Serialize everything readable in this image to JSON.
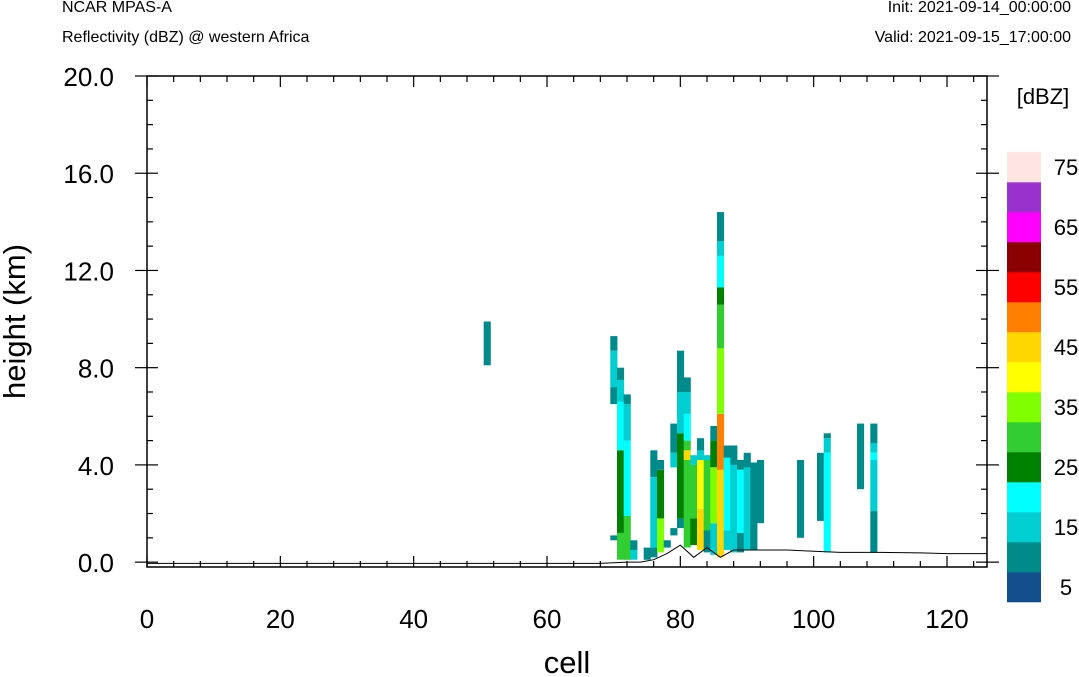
{
  "header": {
    "model": "NCAR MPAS-A",
    "subtitle": "Reflectivity (dBZ) @ western Africa",
    "init": "Init: 2021-09-14_00:00:00",
    "valid": "Valid: 2021-09-15_17:00:00"
  },
  "chart_data": {
    "type": "heatmap",
    "title": "Reflectivity (dBZ) @ western Africa",
    "xlabel": "cell",
    "ylabel": "height (km)",
    "xlim": [
      0,
      126
    ],
    "ylim": [
      -0.2,
      20
    ],
    "x_ticks": [
      "0",
      "20",
      "40",
      "60",
      "80",
      "100",
      "120"
    ],
    "y_ticks": [
      "0.0",
      "4.0",
      "8.0",
      "12.0",
      "16.0",
      "20.0"
    ],
    "colorbar": {
      "unit": "[dBZ]",
      "labels": [
        "5",
        "15",
        "25",
        "35",
        "45",
        "55",
        "65",
        "75"
      ],
      "colors": [
        "#134f8c",
        "#008b8b",
        "#00ced1",
        "#00ffff",
        "#008000",
        "#32cd32",
        "#7fff00",
        "#ffff00",
        "#ffd700",
        "#ff8000",
        "#ff0000",
        "#8b0000",
        "#ff00ff",
        "#9932cc",
        "#ffe4e1"
      ]
    },
    "columns": [
      {
        "cell": 51,
        "segments": [
          {
            "y0": 8.1,
            "y1": 9.9,
            "dbz": 5
          }
        ]
      },
      {
        "cell": 70,
        "segments": [
          {
            "y0": 0.9,
            "y1": 1.1,
            "dbz": 5
          },
          {
            "y0": 6.5,
            "y1": 7.2,
            "dbz": 5
          },
          {
            "y0": 7.2,
            "y1": 8.7,
            "dbz": 10
          },
          {
            "y0": 8.7,
            "y1": 9.3,
            "dbz": 5
          }
        ]
      },
      {
        "cell": 71,
        "segments": [
          {
            "y0": 0.1,
            "y1": 1.2,
            "dbz": 25
          },
          {
            "y0": 1.2,
            "y1": 4.6,
            "dbz": 20
          },
          {
            "y0": 4.6,
            "y1": 6.6,
            "dbz": 15
          },
          {
            "y0": 6.6,
            "y1": 7.5,
            "dbz": 10
          },
          {
            "y0": 7.5,
            "y1": 8.0,
            "dbz": 5
          }
        ]
      },
      {
        "cell": 72,
        "segments": [
          {
            "y0": 0.1,
            "y1": 1.9,
            "dbz": 25
          },
          {
            "y0": 1.9,
            "y1": 5.0,
            "dbz": 15
          },
          {
            "y0": 5.0,
            "y1": 6.5,
            "dbz": 10
          },
          {
            "y0": 6.5,
            "y1": 6.9,
            "dbz": 5
          }
        ]
      },
      {
        "cell": 73,
        "segments": [
          {
            "y0": 0.1,
            "y1": 0.5,
            "dbz": 10
          },
          {
            "y0": 0.5,
            "y1": 0.9,
            "dbz": 5
          }
        ]
      },
      {
        "cell": 75,
        "segments": [
          {
            "y0": 0.1,
            "y1": 0.6,
            "dbz": 5
          }
        ]
      },
      {
        "cell": 76,
        "segments": [
          {
            "y0": 0.2,
            "y1": 0.6,
            "dbz": 5
          },
          {
            "y0": 0.6,
            "y1": 3.5,
            "dbz": 10
          },
          {
            "y0": 3.5,
            "y1": 4.6,
            "dbz": 5
          }
        ]
      },
      {
        "cell": 77,
        "segments": [
          {
            "y0": 0.4,
            "y1": 1.8,
            "dbz": 30
          },
          {
            "y0": 1.8,
            "y1": 3.8,
            "dbz": 20
          },
          {
            "y0": 3.8,
            "y1": 4.2,
            "dbz": 5
          }
        ]
      },
      {
        "cell": 78,
        "segments": [
          {
            "y0": 0.6,
            "y1": 0.9,
            "dbz": 5
          }
        ]
      },
      {
        "cell": 79,
        "segments": [
          {
            "y0": 1.1,
            "y1": 1.4,
            "dbz": 5
          },
          {
            "y0": 3.9,
            "y1": 4.5,
            "dbz": 10
          },
          {
            "y0": 4.5,
            "y1": 5.7,
            "dbz": 5
          }
        ]
      },
      {
        "cell": 80,
        "segments": [
          {
            "y0": 1.4,
            "y1": 1.8,
            "dbz": 5
          },
          {
            "y0": 1.8,
            "y1": 5.3,
            "dbz": 20
          },
          {
            "y0": 5.3,
            "y1": 7.0,
            "dbz": 10
          },
          {
            "y0": 7.0,
            "y1": 8.7,
            "dbz": 5
          }
        ]
      },
      {
        "cell": 81,
        "segments": [
          {
            "y0": 0.6,
            "y1": 4.2,
            "dbz": 25
          },
          {
            "y0": 4.2,
            "y1": 4.6,
            "dbz": 40
          },
          {
            "y0": 4.6,
            "y1": 5.0,
            "dbz": 25
          },
          {
            "y0": 5.0,
            "y1": 6.1,
            "dbz": 15
          },
          {
            "y0": 6.1,
            "y1": 7.0,
            "dbz": 10
          },
          {
            "y0": 7.0,
            "y1": 7.6,
            "dbz": 5
          }
        ]
      },
      {
        "cell": 82,
        "segments": [
          {
            "y0": 0.7,
            "y1": 1.8,
            "dbz": 20
          },
          {
            "y0": 1.8,
            "y1": 4.0,
            "dbz": 25
          },
          {
            "y0": 4.0,
            "y1": 4.4,
            "dbz": 10
          }
        ]
      },
      {
        "cell": 83,
        "segments": [
          {
            "y0": 0.5,
            "y1": 2.2,
            "dbz": 40
          },
          {
            "y0": 2.2,
            "y1": 4.2,
            "dbz": 35
          },
          {
            "y0": 4.2,
            "y1": 4.6,
            "dbz": 10
          },
          {
            "y0": 4.6,
            "y1": 5.1,
            "dbz": 5
          }
        ]
      },
      {
        "cell": 84,
        "segments": [
          {
            "y0": 0.4,
            "y1": 1.3,
            "dbz": 5
          },
          {
            "y0": 1.3,
            "y1": 4.2,
            "dbz": 25
          },
          {
            "y0": 4.2,
            "y1": 4.4,
            "dbz": 10
          }
        ]
      },
      {
        "cell": 85,
        "segments": [
          {
            "y0": 0.3,
            "y1": 1.6,
            "dbz": 10
          },
          {
            "y0": 1.6,
            "y1": 3.9,
            "dbz": 30
          },
          {
            "y0": 3.9,
            "y1": 5.0,
            "dbz": 20
          },
          {
            "y0": 5.0,
            "y1": 5.6,
            "dbz": 5
          }
        ]
      },
      {
        "cell": 86,
        "segments": [
          {
            "y0": 0.2,
            "y1": 3.8,
            "dbz": 40
          },
          {
            "y0": 3.8,
            "y1": 6.1,
            "dbz": 45
          },
          {
            "y0": 6.1,
            "y1": 8.8,
            "dbz": 30
          },
          {
            "y0": 8.8,
            "y1": 10.6,
            "dbz": 25
          },
          {
            "y0": 10.6,
            "y1": 11.3,
            "dbz": 20
          },
          {
            "y0": 11.3,
            "y1": 12.6,
            "dbz": 15
          },
          {
            "y0": 12.6,
            "y1": 13.2,
            "dbz": 10
          },
          {
            "y0": 13.2,
            "y1": 14.4,
            "dbz": 5
          }
        ]
      },
      {
        "cell": 87,
        "segments": [
          {
            "y0": 0.5,
            "y1": 1.3,
            "dbz": 10
          },
          {
            "y0": 1.3,
            "y1": 4.3,
            "dbz": 15
          },
          {
            "y0": 4.3,
            "y1": 4.8,
            "dbz": 5
          }
        ]
      },
      {
        "cell": 88,
        "segments": [
          {
            "y0": 0.4,
            "y1": 4.0,
            "dbz": 10
          },
          {
            "y0": 4.0,
            "y1": 4.8,
            "dbz": 5
          }
        ]
      },
      {
        "cell": 89,
        "segments": [
          {
            "y0": 0.4,
            "y1": 1.2,
            "dbz": 5
          },
          {
            "y0": 1.2,
            "y1": 3.8,
            "dbz": 15
          },
          {
            "y0": 3.8,
            "y1": 4.2,
            "dbz": 5
          }
        ]
      },
      {
        "cell": 90,
        "segments": [
          {
            "y0": 0.5,
            "y1": 3.9,
            "dbz": 10
          },
          {
            "y0": 3.9,
            "y1": 4.5,
            "dbz": 5
          }
        ]
      },
      {
        "cell": 91,
        "segments": [
          {
            "y0": 0.5,
            "y1": 4.1,
            "dbz": 5
          }
        ]
      },
      {
        "cell": 92,
        "segments": [
          {
            "y0": 1.6,
            "y1": 4.2,
            "dbz": 5
          }
        ]
      },
      {
        "cell": 98,
        "segments": [
          {
            "y0": 1.0,
            "y1": 4.2,
            "dbz": 5
          }
        ]
      },
      {
        "cell": 101,
        "segments": [
          {
            "y0": 1.7,
            "y1": 4.5,
            "dbz": 5
          }
        ]
      },
      {
        "cell": 102,
        "segments": [
          {
            "y0": 0.4,
            "y1": 4.5,
            "dbz": 15
          },
          {
            "y0": 4.5,
            "y1": 5.1,
            "dbz": 10
          },
          {
            "y0": 5.1,
            "y1": 5.3,
            "dbz": 5
          }
        ]
      },
      {
        "cell": 107,
        "segments": [
          {
            "y0": 3.0,
            "y1": 5.7,
            "dbz": 5
          }
        ]
      },
      {
        "cell": 109,
        "segments": [
          {
            "y0": 0.4,
            "y1": 2.1,
            "dbz": 5
          },
          {
            "y0": 2.1,
            "y1": 4.2,
            "dbz": 10
          },
          {
            "y0": 4.2,
            "y1": 4.5,
            "dbz": 15
          },
          {
            "y0": 4.5,
            "y1": 4.9,
            "dbz": 10
          },
          {
            "y0": 4.9,
            "y1": 5.7,
            "dbz": 5
          }
        ]
      }
    ],
    "terrain": [
      [
        0,
        -0.05
      ],
      [
        68,
        -0.05
      ],
      [
        72,
        0.0
      ],
      [
        74,
        0.0
      ],
      [
        76,
        0.1
      ],
      [
        78,
        0.35
      ],
      [
        80,
        0.7
      ],
      [
        82,
        0.2
      ],
      [
        84,
        0.6
      ],
      [
        86,
        0.2
      ],
      [
        88,
        0.5
      ],
      [
        90,
        0.5
      ],
      [
        92,
        0.5
      ],
      [
        96,
        0.5
      ],
      [
        100,
        0.45
      ],
      [
        104,
        0.4
      ],
      [
        110,
        0.4
      ],
      [
        116,
        0.38
      ],
      [
        120,
        0.35
      ],
      [
        126,
        0.35
      ]
    ]
  }
}
